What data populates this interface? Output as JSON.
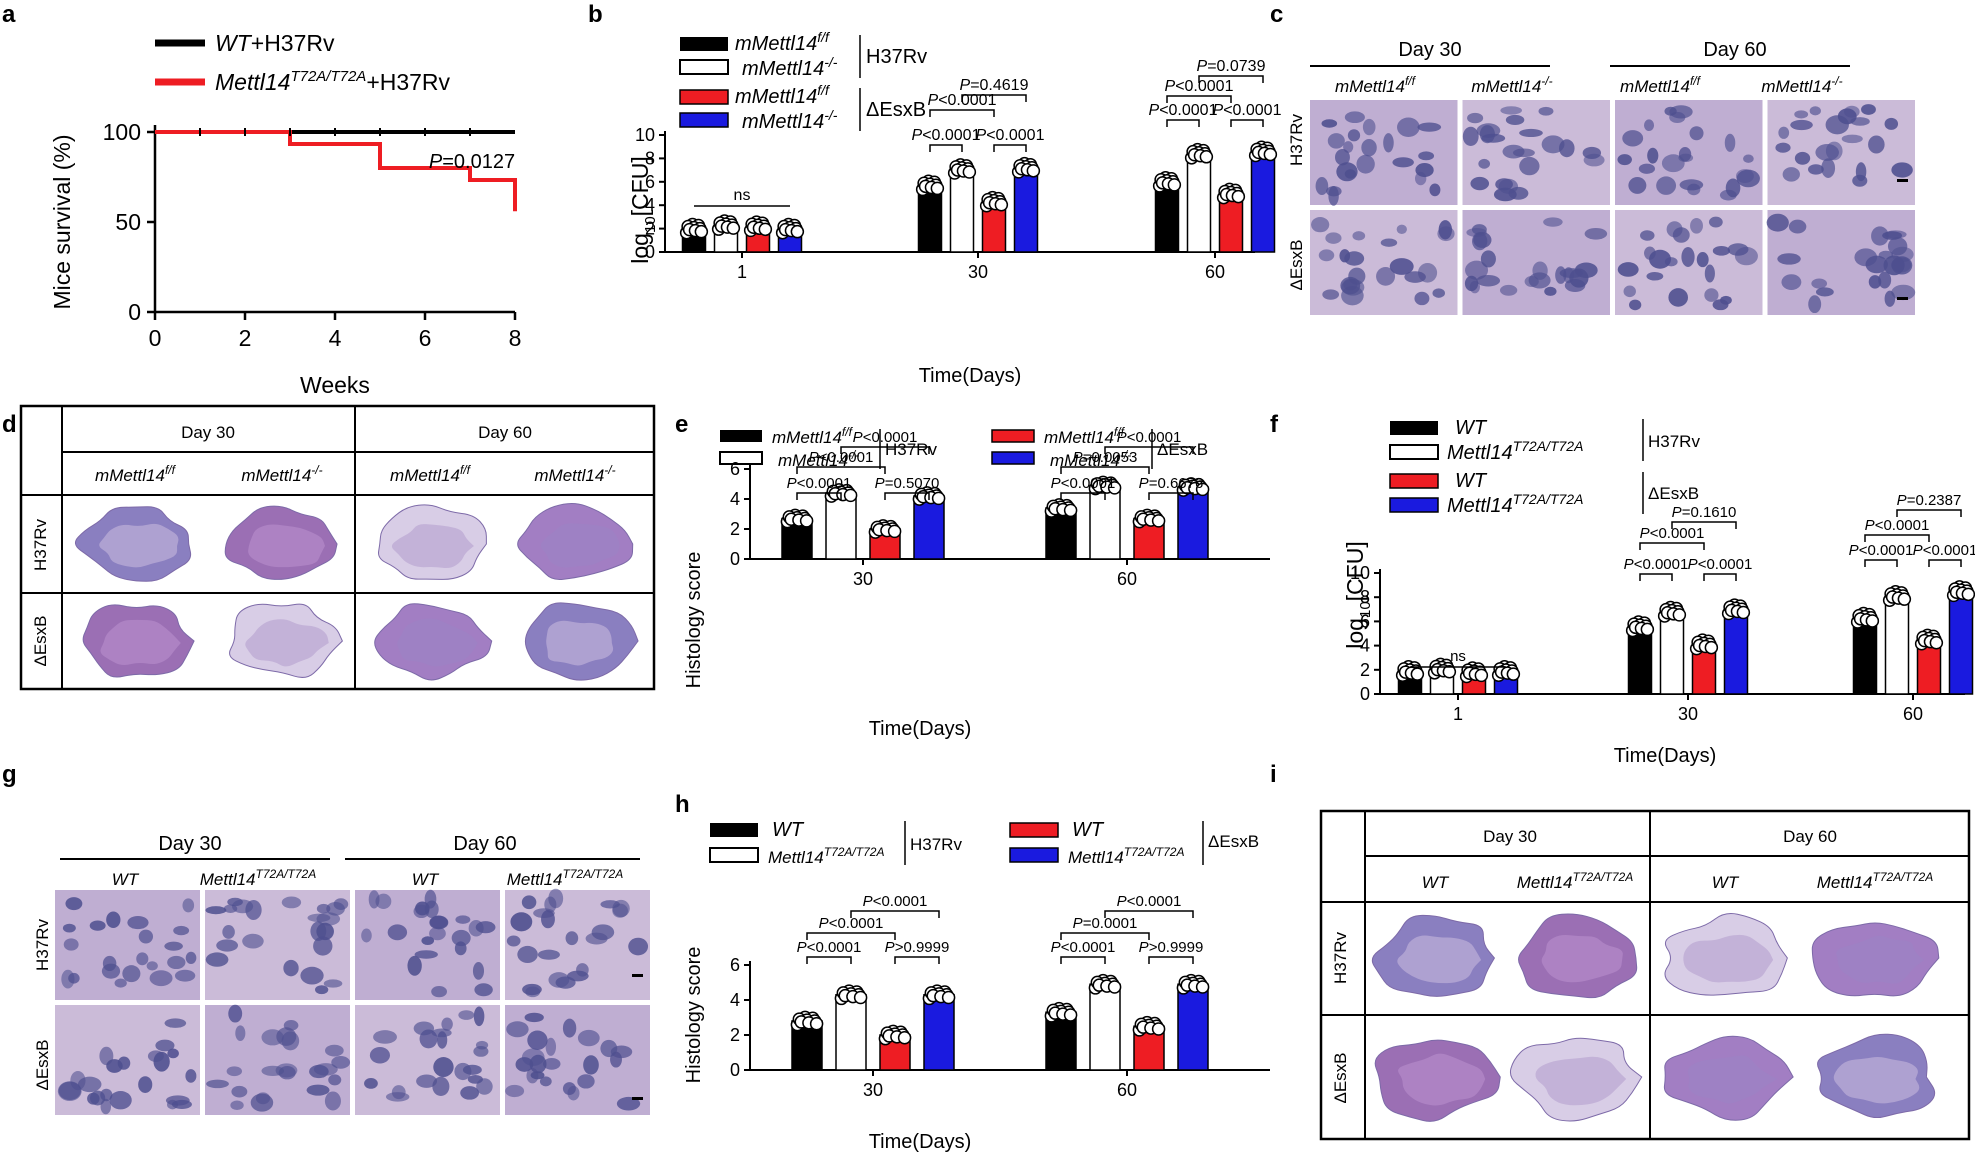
{
  "panels": {
    "a": "a",
    "b": "b",
    "c": "c",
    "d": "d",
    "e": "e",
    "f": "f",
    "g": "g",
    "h": "h",
    "i": "i"
  },
  "colors": {
    "black": "#000000",
    "white": "#ffffff",
    "red": "#ee1d23",
    "blue": "#1a1adf",
    "tissue": "#b7a3cc",
    "nuclei": "#4e4f8f",
    "border": "#000000"
  },
  "panel_a": {
    "legend": [
      {
        "italic": "WT",
        "rest": "+H37Rv",
        "color": "#000000"
      },
      {
        "italic": "Mettl14",
        "sup": "T72A/T72A",
        "rest": "+H37Rv",
        "color": "#ee1d23"
      }
    ],
    "ylabel": "Mice survival (%)",
    "xlabel": "Weeks",
    "yticks": [
      "0",
      "50",
      "100"
    ],
    "xticks": [
      "0",
      "2",
      "4",
      "6",
      "8"
    ],
    "pvalue": "P=0.0127"
  },
  "panel_b": {
    "legend_group1": "H37Rv",
    "legend_group2": "ΔEsxB",
    "legend_ff": "mMettl14",
    "legend_ff_sup": "f/f",
    "legend_ko": "mMettl14",
    "legend_ko_sup": "-/-",
    "ylabel_pre": "log",
    "ylabel_sub": "10",
    "ylabel_post": "[CFU]",
    "xlabel": "Time(Days)",
    "yticks": [
      "0",
      "2",
      "4",
      "6",
      "8",
      "10"
    ],
    "ns": "ns",
    "pvals": [
      "P<0.0001",
      "P<0.0001",
      "P=0.4619",
      "P<0.0001",
      "P<0.0001",
      "P<0.0001",
      "P=0.0739",
      "P<0.0001"
    ]
  },
  "panel_c": {
    "day30": "Day 30",
    "day60": "Day 60",
    "col_ff": "mMettl14",
    "col_ff_sup": "f/f",
    "col_ko": "mMettl14",
    "col_ko_sup": "-/-",
    "row1": "H37Rv",
    "row2": "ΔEsxB"
  },
  "panel_d": {
    "day30": "Day 30",
    "day60": "Day 60",
    "col_ff": "mMettl14",
    "col_ff_sup": "f/f",
    "col_ko": "mMettl14",
    "col_ko_sup": "-/-",
    "row1": "H37Rv",
    "row2": "ΔEsxB"
  },
  "panel_e": {
    "legend_ff": "mMettl14",
    "legend_ff_sup": "f/f",
    "legend_ko": "mMettl14",
    "legend_ko_sup": "-/-",
    "legend_group1": "H37Rv",
    "legend_group2": "ΔEsxB",
    "ylabel": "Histology score",
    "xlabel": "Time(Days)",
    "yticks": [
      "0",
      "2",
      "4",
      "6"
    ],
    "pvals": [
      "P<0.0001",
      "P<0.0001",
      "P<0.0001",
      "P=0.5070",
      "P<0.0001",
      "P=0.0053",
      "P<0.0001",
      "P=0.6676"
    ]
  },
  "panel_f": {
    "legend_wt": "WT",
    "legend_mut": "Mettl14",
    "legend_mut_sup": "T72A/T72A",
    "legend_group1": "H37Rv",
    "legend_group2": "ΔEsxB",
    "ylabel_pre": "log",
    "ylabel_sub": "10",
    "ylabel_post": "[CFU]",
    "xlabel": "Time(Days)",
    "yticks": [
      "0",
      "2",
      "4",
      "6",
      "8",
      "10"
    ],
    "ns": "ns",
    "pvals": [
      "P<0.0001",
      "P<0.0001",
      "P=0.1610",
      "P<0.0001",
      "P<0.0001",
      "P<0.0001",
      "P=0.2387",
      "P<0.0001"
    ]
  },
  "panel_g": {
    "day30": "Day 30",
    "day60": "Day 60",
    "col_wt": "WT",
    "col_mut": "Mettl14",
    "col_mut_sup": "T72A/T72A",
    "row1": "H37Rv",
    "row2": "ΔEsxB"
  },
  "panel_h": {
    "legend_wt": "WT",
    "legend_mut": "Mettl14",
    "legend_mut_sup": "T72A/T72A",
    "legend_group1": "H37Rv",
    "legend_group2": "ΔEsxB",
    "ylabel": "Histology score",
    "xlabel": "Time(Days)",
    "yticks": [
      "0",
      "2",
      "4",
      "6"
    ],
    "pvals": [
      "P<0.0001",
      "P<0.0001",
      "P<0.0001",
      "P>0.9999",
      "P<0.0001",
      "P=0.0001",
      "P<0.0001",
      "P>0.9999"
    ]
  },
  "panel_i": {
    "day30": "Day 30",
    "day60": "Day 60",
    "col_wt": "WT",
    "col_mut": "Mettl14",
    "col_mut_sup": "T72A/T72A",
    "row1": "H37Rv",
    "row2": "ΔEsxB"
  },
  "chart_data": [
    {
      "id": "a",
      "type": "line",
      "title": "",
      "xlabel": "Weeks",
      "ylabel": "Mice survival (%)",
      "xlim": [
        0,
        8
      ],
      "ylim": [
        0,
        100
      ],
      "series": [
        {
          "name": "WT+H37Rv",
          "x": [
            0,
            8
          ],
          "values": [
            100,
            100
          ]
        },
        {
          "name": "Mettl14 T72A/T72A+H37Rv",
          "x": [
            0,
            3,
            3,
            5,
            5,
            7,
            7,
            8,
            8
          ],
          "values": [
            100,
            100,
            93.3,
            93.3,
            80,
            80,
            73.3,
            73.3,
            56
          ]
        }
      ],
      "annotations": [
        "P=0.0127"
      ]
    },
    {
      "id": "b",
      "type": "bar",
      "xlabel": "Time(Days)",
      "ylabel": "log10[CFU]",
      "categories": [
        "1",
        "30",
        "60"
      ],
      "ylim": [
        0,
        10
      ],
      "series": [
        {
          "name": "mMettl14 f/f H37Rv",
          "values": [
            2.0,
            5.7,
            6.0
          ]
        },
        {
          "name": "mMettl14 -/- H37Rv",
          "values": [
            2.3,
            7.1,
            8.4
          ]
        },
        {
          "name": "mMettl14 f/f ΔEsxB",
          "values": [
            2.2,
            4.3,
            5.0
          ]
        },
        {
          "name": "mMettl14 -/- ΔEsxB",
          "values": [
            2.0,
            7.2,
            8.6
          ]
        }
      ]
    },
    {
      "id": "e",
      "type": "bar",
      "xlabel": "Time(Days)",
      "ylabel": "Histology score",
      "categories": [
        "30",
        "60"
      ],
      "ylim": [
        0,
        6
      ],
      "series": [
        {
          "name": "mMettl14 f/f H37Rv",
          "values": [
            2.7,
            3.4
          ]
        },
        {
          "name": "mMettl14 -/- H37Rv",
          "values": [
            4.4,
            4.9
          ]
        },
        {
          "name": "mMettl14 f/f ΔEsxB",
          "values": [
            2.0,
            2.7
          ]
        },
        {
          "name": "mMettl14 -/- ΔEsxB",
          "values": [
            4.2,
            4.8
          ]
        }
      ]
    },
    {
      "id": "f",
      "type": "bar",
      "xlabel": "Time(Days)",
      "ylabel": "log10[CFU]",
      "categories": [
        "1",
        "30",
        "60"
      ],
      "ylim": [
        0,
        10
      ],
      "series": [
        {
          "name": "WT H37Rv",
          "values": [
            1.9,
            5.6,
            6.3
          ]
        },
        {
          "name": "Mettl14 T72A/T72A H37Rv",
          "values": [
            2.1,
            6.8,
            8.1
          ]
        },
        {
          "name": "WT ΔEsxB",
          "values": [
            1.8,
            4.1,
            4.5
          ]
        },
        {
          "name": "Mettl14 T72A/T72A ΔEsxB",
          "values": [
            1.9,
            7.0,
            8.5
          ]
        }
      ]
    },
    {
      "id": "h",
      "type": "bar",
      "xlabel": "Time(Days)",
      "ylabel": "Histology score",
      "categories": [
        "30",
        "60"
      ],
      "ylim": [
        0,
        6
      ],
      "series": [
        {
          "name": "WT H37Rv",
          "values": [
            2.8,
            3.3
          ]
        },
        {
          "name": "Mettl14 T72A/T72A H37Rv",
          "values": [
            4.3,
            4.9
          ]
        },
        {
          "name": "WT ΔEsxB",
          "values": [
            2.0,
            2.5
          ]
        },
        {
          "name": "Mettl14 T72A/T72A ΔEsxB",
          "values": [
            4.3,
            4.9
          ]
        }
      ]
    }
  ]
}
